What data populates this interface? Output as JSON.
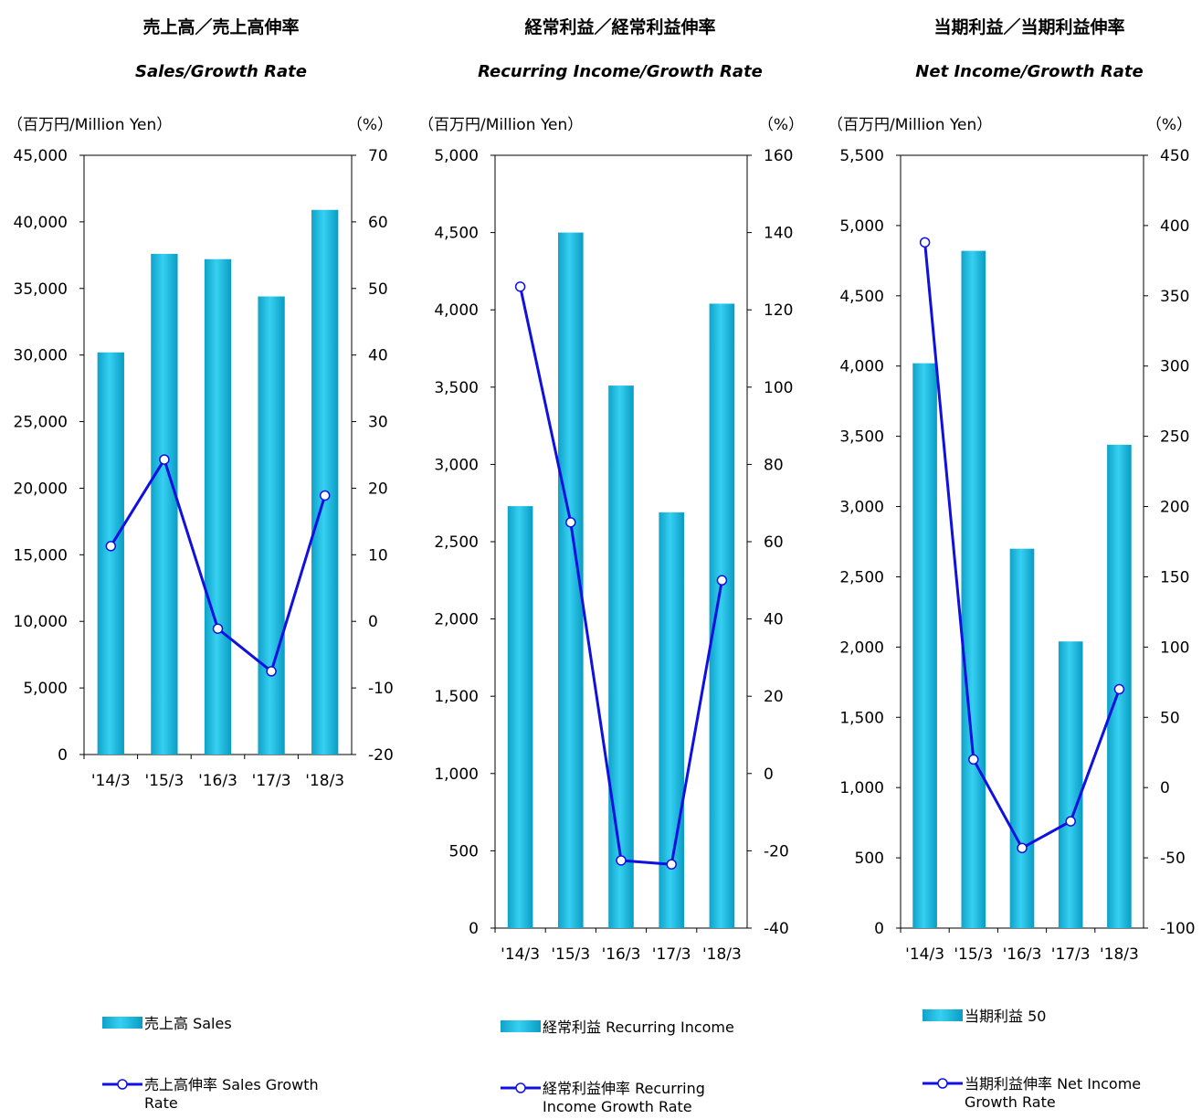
{
  "chart_data": [
    {
      "type": "bar",
      "title": "売上高／売上高伸率",
      "subtitle": "Sales/Growth Rate",
      "left_unit": "（百万円/Million Yen）",
      "right_unit": "（%）",
      "categories": [
        "'14/3",
        "'15/3",
        "'16/3",
        "'17/3",
        "'18/3"
      ],
      "ylim": [
        0,
        45000
      ],
      "yticks": [
        "0",
        "5,000",
        "10,000",
        "15,000",
        "20,000",
        "25,000",
        "30,000",
        "35,000",
        "40,000",
        "45,000"
      ],
      "y2lim": [
        -20,
        70
      ],
      "y2ticks": [
        "-20",
        "-10",
        "0",
        "10",
        "20",
        "30",
        "40",
        "50",
        "60",
        "70"
      ],
      "series": [
        {
          "name": "売上高 Sales",
          "kind": "bar",
          "values": [
            30200,
            37600,
            37200,
            34400,
            40900
          ]
        },
        {
          "name": "売上高伸率 Sales Growth Rate",
          "kind": "line",
          "axis": "right",
          "values": [
            11.3,
            24.3,
            -1.1,
            -7.5,
            18.9
          ]
        }
      ],
      "colors": {
        "bar": "#12b6dc",
        "line": "#1010e0"
      },
      "grid": false
    },
    {
      "type": "bar",
      "title": "経常利益／経常利益伸率",
      "subtitle": "Recurring Income/Growth Rate",
      "left_unit": "（百万円/Million Yen）",
      "right_unit": "（%）",
      "categories": [
        "'14/3",
        "'15/3",
        "'16/3",
        "'17/3",
        "'18/3"
      ],
      "ylim": [
        0,
        5000
      ],
      "yticks": [
        "0",
        "500",
        "1,000",
        "1,500",
        "2,000",
        "2,500",
        "3,000",
        "3,500",
        "4,000",
        "4,500",
        "5,000"
      ],
      "y2lim": [
        -40,
        160
      ],
      "y2ticks": [
        "-40",
        "-20",
        "0",
        "20",
        "40",
        "60",
        "80",
        "100",
        "120",
        "140",
        "160"
      ],
      "series": [
        {
          "name": "経常利益 Recurring Income",
          "kind": "bar",
          "values": [
            2730,
            4500,
            3510,
            2690,
            4040
          ]
        },
        {
          "name": "経常利益伸率 Recurring Income Growth Rate",
          "kind": "line",
          "axis": "right",
          "values": [
            126,
            65,
            -22.5,
            -23.5,
            50
          ]
        }
      ],
      "colors": {
        "bar": "#12b6dc",
        "line": "#1010e0"
      },
      "grid": false
    },
    {
      "type": "bar",
      "title": "当期利益／当期利益伸率",
      "subtitle": "Net Income/Growth Rate",
      "left_unit": "（百万円/Million Yen）",
      "right_unit": "（%）",
      "categories": [
        "'14/3",
        "'15/3",
        "'16/3",
        "'17/3",
        "'18/3"
      ],
      "ylim": [
        0,
        5500
      ],
      "yticks": [
        "0",
        "500",
        "1,000",
        "1,500",
        "2,000",
        "2,500",
        "3,000",
        "3,500",
        "4,000",
        "4,500",
        "5,000",
        "5,500"
      ],
      "y2lim": [
        -100,
        450
      ],
      "y2ticks": [
        "-100",
        "-50",
        "0",
        "50",
        "100",
        "150",
        "200",
        "250",
        "300",
        "350",
        "400",
        "450"
      ],
      "series": [
        {
          "name": "当期利益 50",
          "kind": "bar",
          "values": [
            4020,
            4820,
            2700,
            2040,
            3440
          ]
        },
        {
          "name": "当期利益伸率 Net Income Growth Rate",
          "kind": "line",
          "axis": "right",
          "values": [
            388,
            20,
            -43,
            -24,
            70
          ]
        }
      ],
      "colors": {
        "bar": "#12b6dc",
        "line": "#1010e0"
      },
      "grid": false
    }
  ]
}
